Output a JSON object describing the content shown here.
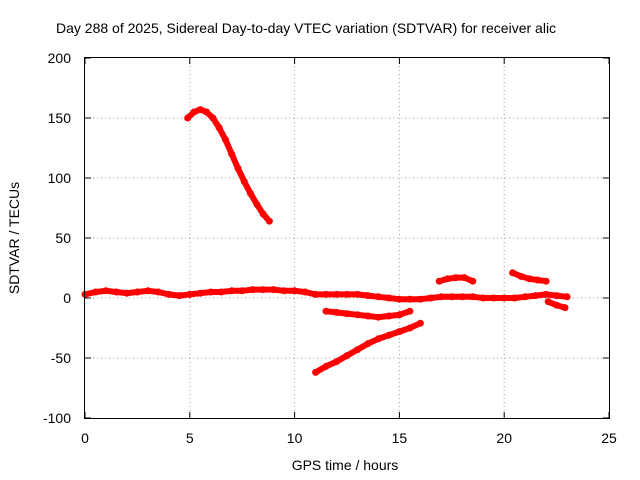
{
  "chart_data": {
    "type": "scatter",
    "title": "Day 288 of 2025, Sidereal Day-to-day VTEC variation (SDTVAR) for receiver alic",
    "xlabel": "GPS time / hours",
    "ylabel": "SDTVAR / TECUs",
    "xlim": [
      0,
      25
    ],
    "ylim": [
      -100,
      200
    ],
    "xticks": [
      0,
      5,
      10,
      15,
      20,
      25
    ],
    "yticks": [
      -100,
      -50,
      0,
      50,
      100,
      150,
      200
    ],
    "xtick_labels": [
      "0",
      "5",
      "10",
      "15",
      "20",
      "25"
    ],
    "ytick_labels": [
      "-100",
      "-50",
      "0",
      "50",
      "100",
      "150",
      "200"
    ],
    "grid": true,
    "legend": "none",
    "colors": {
      "series": "#ff0000",
      "grid": "#a0a0a0",
      "frame": "#000000"
    },
    "series": [
      {
        "x": [
          0.0,
          0.5,
          1.0,
          1.5,
          2.0,
          2.5,
          3.0,
          3.5,
          4.0,
          4.5,
          5.0,
          5.5,
          6.0,
          6.5,
          7.0,
          7.5,
          8.0,
          8.5,
          9.0,
          9.5,
          10.0,
          10.5,
          11.0,
          11.5,
          12.0,
          12.5,
          13.0,
          13.5,
          14.0,
          14.5,
          15.0,
          15.5,
          16.0,
          16.5,
          17.0,
          17.5,
          18.0,
          18.5,
          19.0,
          19.5,
          20.0,
          20.5,
          21.0,
          21.5,
          22.0,
          22.5,
          23.0
        ],
        "y": [
          3,
          5,
          6,
          5,
          4,
          5,
          6,
          5,
          3,
          2,
          3,
          4,
          5,
          5,
          6,
          6,
          7,
          7,
          7,
          6,
          6,
          5,
          3,
          3,
          3,
          3,
          3,
          2,
          1,
          0,
          -1,
          -1,
          -1,
          0,
          1,
          1,
          1,
          1,
          0,
          0,
          0,
          0,
          1,
          2,
          3,
          2,
          1
        ]
      },
      {
        "x": [
          4.9,
          5.2,
          5.5,
          5.8,
          6.1,
          6.4,
          6.7,
          7.0,
          7.3,
          7.6,
          7.9,
          8.2,
          8.5,
          8.8
        ],
        "y": [
          150,
          155,
          157,
          155,
          150,
          142,
          132,
          120,
          108,
          97,
          87,
          78,
          70,
          64
        ]
      },
      {
        "x": [
          11.0,
          11.5,
          12.0,
          12.5,
          13.0,
          13.5,
          14.0,
          14.5,
          15.0,
          15.5,
          16.0
        ],
        "y": [
          -62,
          -57,
          -53,
          -48,
          -43,
          -38,
          -34,
          -31,
          -28,
          -25,
          -21
        ]
      },
      {
        "x": [
          11.5,
          12.0,
          12.5,
          13.0,
          13.5,
          14.0,
          14.5,
          15.0,
          15.5
        ],
        "y": [
          -11,
          -12,
          -13,
          -14,
          -15,
          -16,
          -15,
          -14,
          -11
        ]
      },
      {
        "x": [
          16.9,
          17.3,
          17.7,
          18.1,
          18.5
        ],
        "y": [
          14,
          16,
          17,
          17,
          14
        ]
      },
      {
        "x": [
          20.4,
          20.8,
          21.2,
          21.6,
          22.0
        ],
        "y": [
          21,
          18,
          16,
          15,
          14
        ]
      },
      {
        "x": [
          22.1,
          22.5,
          22.9
        ],
        "y": [
          -3,
          -6,
          -8
        ]
      }
    ]
  }
}
